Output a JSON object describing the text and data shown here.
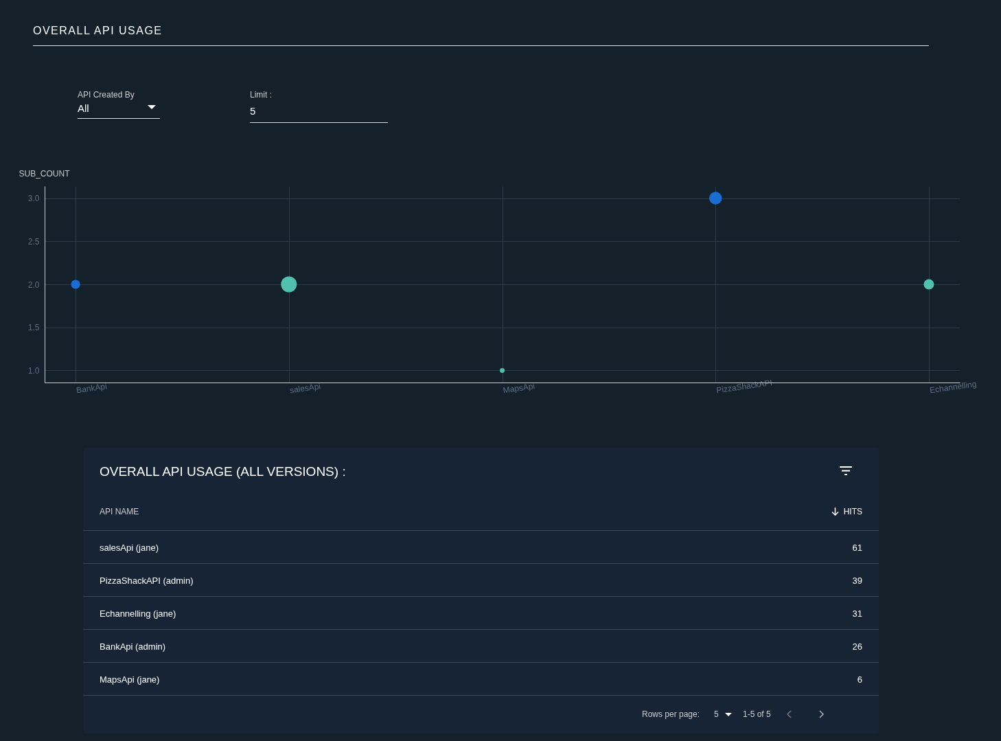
{
  "chart_data": [
    {
      "type": "bubble",
      "title": "OVERALL API USAGE",
      "ylabel": "SUB_COUNT",
      "annotations": [
        "API Created By",
        "All",
        "Limit :",
        "5"
      ],
      "categories": [
        "BankApi",
        "salesApi",
        "MapsApi",
        "PizzaShackAPI",
        "Echannelling"
      ],
      "values": [
        2,
        2,
        1,
        3,
        2
      ],
      "sizes": [
        0.33,
        1,
        0.09,
        0.65,
        0.43
      ],
      "colors": [
        "#1a6dd0",
        "#4fc1ae",
        "#4fc1ae",
        "#1a6dd0",
        "#4fc1ae"
      ],
      "ylim": [
        0.86,
        3.14
      ],
      "yticks": [
        {
          "value": 1,
          "label": "1.0"
        },
        1.5,
        {
          "value": 2,
          "label": "2.0"
        },
        2.5,
        {
          "value": 3,
          "label": "3.0"
        }
      ],
      "grid": true,
      "marker": "circle",
      "legend": false
    },
    {
      "type": "other",
      "title": "OVERALL API USAGE (ALL VERSIONS) :",
      "xlabel": "API NAME",
      "ylabel": "HITS",
      "categories": [
        "salesApi (jane)",
        "PizzaShackAPI (admin)",
        "Echannelling (jane)",
        "BankApi (admin)",
        "MapsApi (jane)"
      ],
      "values": [
        61,
        39,
        31,
        26,
        6
      ],
      "data_labels": true,
      "annotations": [
        "Rows per page:",
        "5",
        "1-5 of 5"
      ]
    }
  ]
}
